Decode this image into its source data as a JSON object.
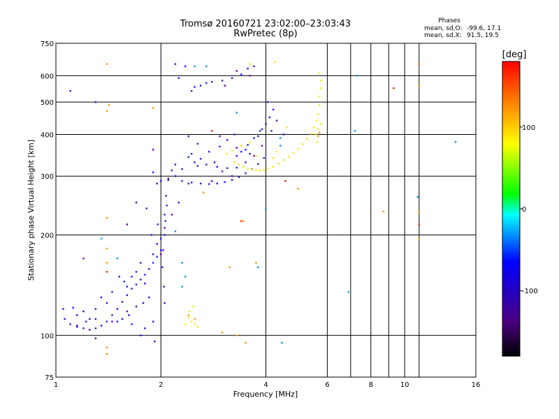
{
  "chart_data": {
    "type": "scatter",
    "title": "Tromsø 20160721 23:02:00–23:03:43",
    "subtitle": "RwPretec (8p)",
    "phases_header": "Phases",
    "phase_stats": [
      {
        "label": "mean, sd,O:",
        "value": "-99.6, 17.1"
      },
      {
        "label": "mean, sd,X:",
        "value": "91.5, 19.5"
      }
    ],
    "xlabel": "Frequency [MHz]",
    "ylabel": "Stationary phase Virtual Height [km]",
    "x_scale": "log",
    "y_scale": "log",
    "xlim": [
      1,
      16
    ],
    "ylim": [
      75,
      750
    ],
    "x_ticks": [
      1,
      2,
      4,
      6,
      8,
      10,
      16
    ],
    "x_tick_labels": [
      "1",
      "2",
      "4",
      "6",
      "8",
      "10",
      "16"
    ],
    "x_grid": [
      2,
      4,
      6,
      7,
      8,
      9,
      10,
      11
    ],
    "y_ticks": [
      75,
      100,
      200,
      300,
      400,
      500,
      600,
      750
    ],
    "y_tick_labels": [
      "75",
      "100",
      "200",
      "300",
      "400",
      "500",
      "600",
      "750"
    ],
    "grid": true,
    "colorbar": {
      "label": "[deg]",
      "range": [
        -180,
        180
      ],
      "ticks": [
        100,
        0,
        -100
      ],
      "tick_labels": [
        "100",
        "0",
        "-100"
      ],
      "colors": [
        "#000000",
        "#4b0082",
        "#0000ff",
        "#00ffff",
        "#00ff00",
        "#ffff00",
        "#ff8c00",
        "#ff0000"
      ]
    },
    "series": [
      {
        "phase": -100,
        "color": "#1a1aff",
        "points": [
          [
            1.06,
            112
          ],
          [
            1.1,
            108
          ],
          [
            1.15,
            106
          ],
          [
            1.2,
            105
          ],
          [
            1.25,
            104
          ],
          [
            1.3,
            105
          ],
          [
            1.35,
            107
          ],
          [
            1.4,
            110
          ],
          [
            1.45,
            115
          ],
          [
            1.5,
            120
          ],
          [
            1.55,
            126
          ],
          [
            1.6,
            132
          ],
          [
            1.65,
            138
          ],
          [
            1.7,
            142
          ],
          [
            1.75,
            147
          ],
          [
            1.8,
            152
          ],
          [
            1.85,
            158
          ],
          [
            1.9,
            165
          ],
          [
            1.95,
            172
          ],
          [
            2.0,
            180
          ],
          [
            2.05,
            200
          ],
          [
            2.05,
            230
          ],
          [
            2.07,
            262
          ],
          [
            1.95,
            285
          ],
          [
            2.0,
            290
          ],
          [
            2.1,
            292
          ],
          [
            1.9,
            308
          ],
          [
            2.15,
            312
          ],
          [
            2.3,
            290
          ],
          [
            2.45,
            287
          ],
          [
            2.6,
            285
          ],
          [
            2.75,
            284
          ],
          [
            2.9,
            285
          ],
          [
            3.05,
            288
          ],
          [
            3.2,
            292
          ],
          [
            3.35,
            298
          ],
          [
            3.5,
            306
          ],
          [
            3.65,
            315
          ],
          [
            3.8,
            326
          ],
          [
            3.95,
            340
          ],
          [
            2.5,
            330
          ],
          [
            2.7,
            325
          ],
          [
            2.9,
            320
          ],
          [
            3.1,
            317
          ],
          [
            2.4,
            342
          ],
          [
            2.6,
            338
          ],
          [
            3.3,
            318
          ],
          [
            3.4,
            355
          ],
          [
            3.55,
            372
          ],
          [
            3.7,
            390
          ],
          [
            3.85,
            410
          ],
          [
            4.0,
            430
          ],
          [
            4.1,
            450
          ],
          [
            4.2,
            475
          ],
          [
            3.3,
            345
          ],
          [
            3.5,
            360
          ],
          [
            2.4,
            395
          ],
          [
            2.55,
            375
          ],
          [
            2.75,
            355
          ],
          [
            2.95,
            368
          ],
          [
            3.1,
            385
          ],
          [
            3.25,
            400
          ],
          [
            2.6,
            560
          ],
          [
            2.7,
            570
          ],
          [
            2.8,
            575
          ],
          [
            2.5,
            555
          ],
          [
            3.0,
            580
          ],
          [
            3.2,
            590
          ],
          [
            3.4,
            605
          ],
          [
            3.55,
            630
          ],
          [
            3.7,
            640
          ],
          [
            2.2,
            650
          ],
          [
            2.35,
            640
          ],
          [
            2.25,
            590
          ],
          [
            1.78,
            125
          ],
          [
            1.85,
            130
          ],
          [
            1.62,
            115
          ],
          [
            1.7,
            122
          ],
          [
            1.5,
            110
          ],
          [
            1.55,
            112
          ],
          [
            1.3,
            120
          ],
          [
            1.4,
            125
          ],
          [
            1.8,
            143
          ],
          [
            1.6,
            140
          ],
          [
            1.9,
            175
          ],
          [
            1.95,
            188
          ],
          [
            2.0,
            195
          ],
          [
            2.02,
            160
          ],
          [
            1.75,
            165
          ],
          [
            1.2,
            118
          ],
          [
            1.25,
            112
          ],
          [
            1.12,
            121
          ],
          [
            1.35,
            130
          ],
          [
            1.45,
            135
          ],
          [
            1.65,
            150
          ],
          [
            1.7,
            155
          ],
          [
            2.2,
            300
          ],
          [
            2.45,
            350
          ],
          [
            2.2,
            325
          ],
          [
            1.05,
            120
          ],
          [
            1.15,
            115
          ],
          [
            1.22,
            110
          ],
          [
            1.3,
            112
          ],
          [
            1.52,
            150
          ],
          [
            1.57,
            145
          ],
          [
            1.8,
            105
          ],
          [
            1.75,
            100
          ],
          [
            1.65,
            108
          ],
          [
            1.9,
            110
          ],
          [
            2.05,
            125
          ],
          [
            2.04,
            140
          ],
          [
            2.06,
            220
          ],
          [
            2.08,
            245
          ],
          [
            1.96,
            215
          ],
          [
            1.88,
            200
          ],
          [
            2.3,
            315
          ],
          [
            2.55,
            322
          ],
          [
            2.85,
            330
          ],
          [
            3.6,
            350
          ],
          [
            3.8,
            395
          ],
          [
            3.9,
            415
          ],
          [
            4.05,
            500
          ],
          [
            4.3,
            440
          ],
          [
            4.5,
            400
          ],
          [
            1.3,
            500
          ],
          [
            1.1,
            540
          ],
          [
            1.82,
            240
          ],
          [
            1.7,
            250
          ],
          [
            2.25,
            250
          ],
          [
            1.92,
            96
          ]
        ]
      },
      {
        "phase": -120,
        "color": "#6600cc",
        "points": [
          [
            1.15,
            107
          ],
          [
            1.25,
            104
          ],
          [
            1.45,
            110
          ],
          [
            1.6,
            118
          ],
          [
            2.0,
            175
          ],
          [
            2.05,
            210
          ],
          [
            2.1,
            295
          ],
          [
            2.4,
            285
          ],
          [
            2.8,
            290
          ],
          [
            3.2,
            300
          ],
          [
            3.5,
            330
          ],
          [
            3.7,
            345
          ],
          [
            3.9,
            370
          ],
          [
            2.45,
            540
          ],
          [
            3.05,
            560
          ],
          [
            3.3,
            620
          ],
          [
            3.6,
            600
          ],
          [
            4.15,
            410
          ],
          [
            3.0,
            310
          ],
          [
            3.3,
            365
          ],
          [
            2.95,
            395
          ],
          [
            1.2,
            170
          ],
          [
            1.3,
            98
          ],
          [
            1.9,
            360
          ],
          [
            2.15,
            230
          ],
          [
            2.03,
            180
          ],
          [
            1.6,
            215
          ]
        ]
      },
      {
        "phase": -70,
        "color": "#0099ff",
        "points": [
          [
            2.3,
            140
          ],
          [
            2.35,
            150
          ],
          [
            2.3,
            165
          ],
          [
            2.5,
            640
          ],
          [
            2.7,
            640
          ],
          [
            3.3,
            465
          ],
          [
            2.2,
            205
          ],
          [
            1.35,
            195
          ],
          [
            1.5,
            170
          ],
          [
            4.45,
            95
          ],
          [
            4.4,
            390
          ],
          [
            7.3,
            600
          ],
          [
            6.9,
            135
          ],
          [
            7.2,
            410
          ],
          [
            10.9,
            260
          ],
          [
            14.0,
            380
          ],
          [
            4.4,
            370
          ],
          [
            4.0,
            240
          ],
          [
            3.8,
            160
          ]
        ]
      },
      {
        "phase": 95,
        "color": "#ffe800",
        "points": [
          [
            3.25,
            330
          ],
          [
            3.35,
            325
          ],
          [
            3.45,
            320
          ],
          [
            3.55,
            316
          ],
          [
            3.65,
            314
          ],
          [
            3.75,
            313
          ],
          [
            3.85,
            312
          ],
          [
            3.95,
            313
          ],
          [
            4.05,
            316
          ],
          [
            4.2,
            320
          ],
          [
            4.35,
            327
          ],
          [
            4.5,
            335
          ],
          [
            4.65,
            343
          ],
          [
            4.8,
            352
          ],
          [
            4.95,
            362
          ],
          [
            5.1,
            374
          ],
          [
            5.25,
            388
          ],
          [
            5.4,
            402
          ],
          [
            5.5,
            420
          ],
          [
            5.6,
            440
          ],
          [
            5.65,
            460
          ],
          [
            5.7,
            490
          ],
          [
            5.7,
            520
          ],
          [
            5.75,
            550
          ],
          [
            5.75,
            580
          ],
          [
            5.7,
            610
          ],
          [
            5.6,
            380
          ],
          [
            5.55,
            400
          ],
          [
            5.65,
            415
          ],
          [
            5.75,
            430
          ],
          [
            3.1,
            350
          ],
          [
            3.2,
            358
          ],
          [
            3.4,
            370
          ],
          [
            3.6,
            378
          ],
          [
            2.4,
            113
          ],
          [
            2.45,
            110
          ],
          [
            2.5,
            108
          ],
          [
            2.42,
            118
          ],
          [
            2.48,
            122
          ],
          [
            2.35,
            108
          ],
          [
            2.55,
            106
          ],
          [
            4.25,
            660
          ],
          [
            3.6,
            650
          ],
          [
            3.75,
            345
          ],
          [
            4.2,
            340
          ],
          [
            4.6,
            420
          ],
          [
            4.3,
            355
          ]
        ]
      },
      {
        "phase": 140,
        "color": "#ff9900",
        "points": [
          [
            1.4,
            650
          ],
          [
            1.4,
            470
          ],
          [
            1.42,
            490
          ],
          [
            1.4,
            225
          ],
          [
            1.4,
            182
          ],
          [
            1.4,
            165
          ],
          [
            1.4,
            92
          ],
          [
            1.4,
            88
          ],
          [
            1.9,
            480
          ],
          [
            11.0,
            650
          ],
          [
            11.0,
            560
          ],
          [
            11.0,
            235
          ],
          [
            11.0,
            195
          ],
          [
            3.5,
            95
          ],
          [
            3.3,
            100
          ],
          [
            3.0,
            102
          ],
          [
            5.65,
            395
          ],
          [
            5.7,
            405
          ],
          [
            2.4,
            115
          ],
          [
            2.5,
            112
          ],
          [
            4.95,
            275
          ],
          [
            8.7,
            235
          ],
          [
            3.75,
            165
          ],
          [
            3.15,
            160
          ],
          [
            2.65,
            268
          ],
          [
            3.45,
            220
          ]
        ]
      },
      {
        "phase": 170,
        "color": "#ff2200",
        "points": [
          [
            3.4,
            220
          ],
          [
            9.3,
            550
          ],
          [
            11.0,
            215
          ],
          [
            1.4,
            155
          ],
          [
            4.55,
            290
          ],
          [
            2.8,
            410
          ]
        ]
      }
    ]
  }
}
